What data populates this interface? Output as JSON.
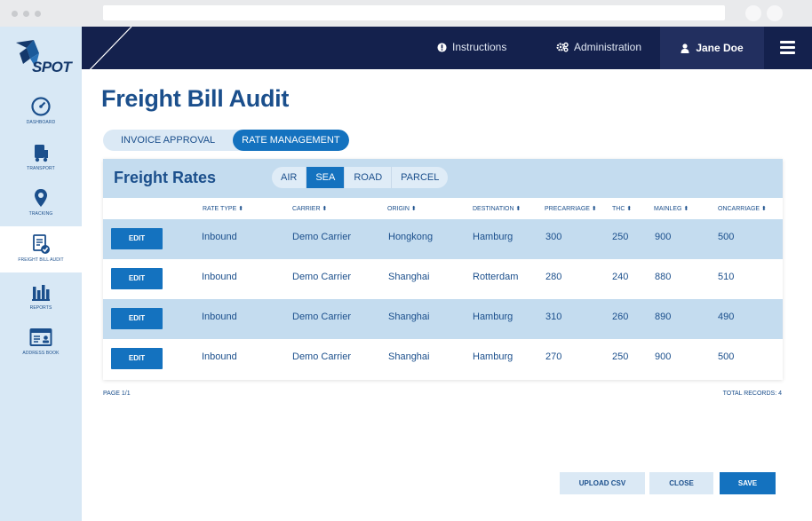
{
  "brand": {
    "logo_text": "SPOT"
  },
  "sidebar": {
    "items": [
      {
        "label": "DASHBOARD",
        "icon": "speedometer-icon"
      },
      {
        "label": "TRANSPORT",
        "icon": "truck-icon"
      },
      {
        "label": "TRACKING",
        "icon": "map-pin-icon"
      },
      {
        "label": "FREIGHT BILL AUDIT",
        "icon": "document-check-icon",
        "active": true
      },
      {
        "label": "REPORTS",
        "icon": "bar-chart-icon"
      },
      {
        "label": "ADDRESS BOOK",
        "icon": "address-card-icon"
      }
    ]
  },
  "topbar": {
    "instructions_label": "Instructions",
    "administration_label": "Administration",
    "user_name": "Jane Doe"
  },
  "page": {
    "title": "Freight Bill Audit",
    "tabs": [
      {
        "label": "INVOICE APPROVAL",
        "active": false
      },
      {
        "label": "RATE MANAGEMENT",
        "active": true
      }
    ]
  },
  "rates": {
    "title": "Freight Rates",
    "modes": [
      {
        "label": "AIR",
        "active": false
      },
      {
        "label": "SEA",
        "active": true
      },
      {
        "label": "ROAD",
        "active": false
      },
      {
        "label": "PARCEL",
        "active": false
      }
    ],
    "columns": [
      "RATE TYPE",
      "CARRIER",
      "ORIGIN",
      "DESTINATION",
      "PRECARRIAGE",
      "THC",
      "MAINLEG",
      "ONCARRIAGE"
    ],
    "edit_label": "EDIT",
    "rows": [
      {
        "rate_type": "Inbound",
        "carrier": "Demo Carrier",
        "origin": "Hongkong",
        "destination": "Hamburg",
        "precarriage": "300",
        "thc": "250",
        "mainleg": "900",
        "oncarriage": "500"
      },
      {
        "rate_type": "Inbound",
        "carrier": "Demo Carrier",
        "origin": "Shanghai",
        "destination": "Rotterdam",
        "precarriage": "280",
        "thc": "240",
        "mainleg": "880",
        "oncarriage": "510"
      },
      {
        "rate_type": "Inbound",
        "carrier": "Demo Carrier",
        "origin": "Shanghai",
        "destination": "Hamburg",
        "precarriage": "310",
        "thc": "260",
        "mainleg": "890",
        "oncarriage": "490"
      },
      {
        "rate_type": "Inbound",
        "carrier": "Demo Carrier",
        "origin": "Shanghai",
        "destination": "Hamburg",
        "precarriage": "270",
        "thc": "250",
        "mainleg": "900",
        "oncarriage": "500"
      }
    ],
    "page_info": "PAGE 1/1",
    "total_records": "TOTAL RECORDS: 4"
  },
  "actions": {
    "upload_label": "UPLOAD CSV",
    "close_label": "CLOSE",
    "save_label": "SAVE"
  },
  "colors": {
    "primary": "#1472bf",
    "navy": "#14214d",
    "row_alt": "#c4dcef",
    "sidebar": "#d8e8f5",
    "text": "#1b4f8c"
  }
}
